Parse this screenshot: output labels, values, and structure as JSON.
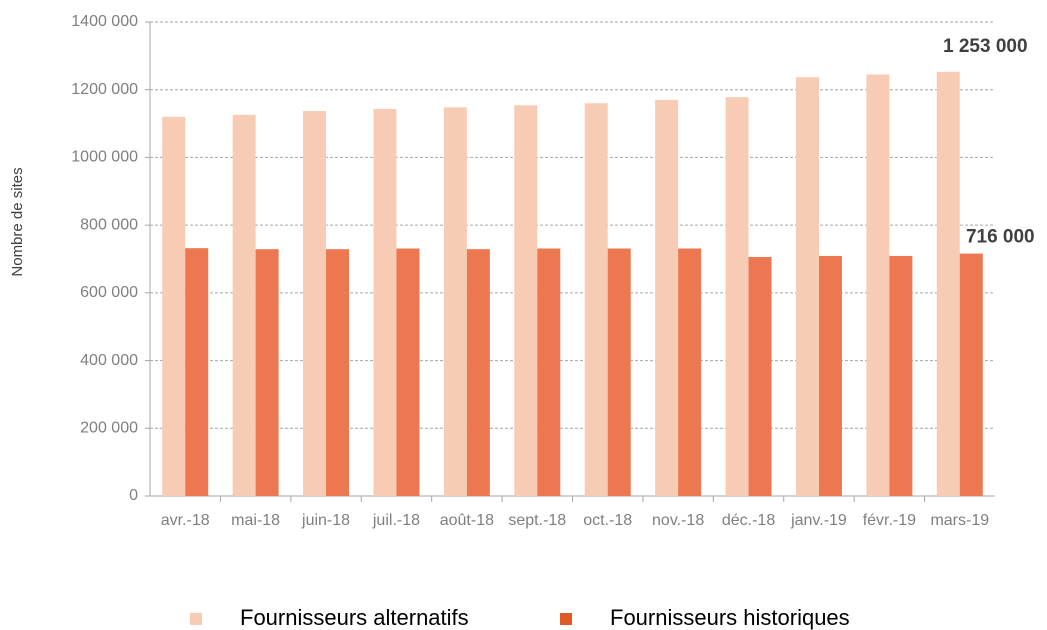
{
  "chart_data": {
    "type": "bar",
    "ylabel": "Nombre de sites",
    "categories": [
      "avr.-18",
      "mai-18",
      "juin-18",
      "juil.-18",
      "août-18",
      "sept.-18",
      "oct.-18",
      "nov.-18",
      "déc.-18",
      "janv.-19",
      "févr.-19",
      "mars-19"
    ],
    "series": [
      {
        "name": "Fournisseurs alternatifs",
        "color": "#f8cbb4",
        "values": [
          1120000,
          1126000,
          1137000,
          1143000,
          1148000,
          1154000,
          1160000,
          1170000,
          1178000,
          1237000,
          1245000,
          1253000
        ],
        "value_labels": [
          null,
          null,
          null,
          null,
          null,
          null,
          null,
          null,
          null,
          null,
          null,
          "1 253 000"
        ]
      },
      {
        "name": "Fournisseurs historiques",
        "color": "#ed7750",
        "values": [
          732000,
          729000,
          729000,
          731000,
          729000,
          731000,
          731000,
          731000,
          706000,
          709000,
          709000,
          716000
        ],
        "value_labels": [
          null,
          null,
          null,
          null,
          null,
          null,
          null,
          null,
          null,
          null,
          null,
          "716 000"
        ]
      }
    ],
    "ylim": [
      0,
      1400000
    ],
    "yticks": [
      0,
      {
        "value": 200000,
        "label": "200 000"
      },
      {
        "value": 400000,
        "label": "400 000"
      },
      {
        "value": 600000,
        "label": "600 000"
      },
      {
        "value": 800000,
        "label": "800 000"
      },
      {
        "value": 1000000,
        "label": "1000 000"
      },
      {
        "value": 1200000,
        "label": "1200 000"
      },
      {
        "value": 1400000,
        "label": "1400 000"
      }
    ],
    "grid": true,
    "legend": "bottom"
  }
}
